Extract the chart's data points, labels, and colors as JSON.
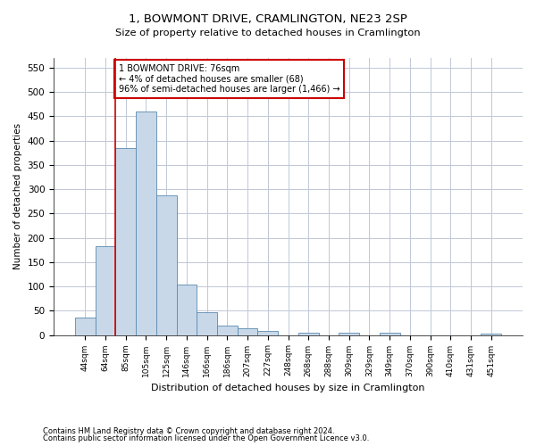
{
  "title": "1, BOWMONT DRIVE, CRAMLINGTON, NE23 2SP",
  "subtitle": "Size of property relative to detached houses in Cramlington",
  "xlabel": "Distribution of detached houses by size in Cramlington",
  "ylabel": "Number of detached properties",
  "categories": [
    "44sqm",
    "64sqm",
    "85sqm",
    "105sqm",
    "125sqm",
    "146sqm",
    "166sqm",
    "186sqm",
    "207sqm",
    "227sqm",
    "248sqm",
    "268sqm",
    "288sqm",
    "309sqm",
    "329sqm",
    "349sqm",
    "370sqm",
    "390sqm",
    "410sqm",
    "431sqm",
    "451sqm"
  ],
  "values": [
    35,
    183,
    385,
    460,
    288,
    103,
    47,
    19,
    13,
    9,
    0,
    5,
    0,
    5,
    0,
    5,
    0,
    0,
    0,
    0,
    3
  ],
  "bar_color": "#c8d8e8",
  "bar_edge_color": "#5a8ab0",
  "vline_x": 1.5,
  "vline_color": "#cc0000",
  "annotation_text": "1 BOWMONT DRIVE: 76sqm\n← 4% of detached houses are smaller (68)\n96% of semi-detached houses are larger (1,466) →",
  "annotation_box_color": "#ffffff",
  "annotation_box_edgecolor": "#cc0000",
  "ylim": [
    0,
    570
  ],
  "yticks": [
    0,
    50,
    100,
    150,
    200,
    250,
    300,
    350,
    400,
    450,
    500,
    550
  ],
  "footer_line1": "Contains HM Land Registry data © Crown copyright and database right 2024.",
  "footer_line2": "Contains public sector information licensed under the Open Government Licence v3.0.",
  "bg_color": "#ffffff",
  "grid_color": "#c0c8d8"
}
